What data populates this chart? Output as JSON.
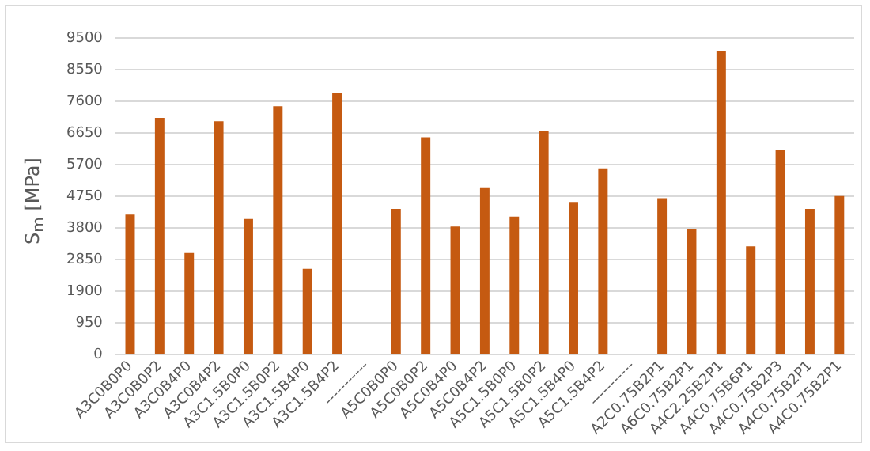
{
  "chart_data": {
    "type": "bar",
    "ylabel": "S$_{m}$ [MPa]",
    "categories": [
      "A3C0B0P0",
      "A3C0B0P2",
      "A3C0B4P0",
      "A3C0B4P2",
      "A3C1.5B0P0",
      "A3C1.5B0P2",
      "A3C1.5B4P0",
      "A3C1.5B4P2",
      "-----------",
      "A5C0B0P0",
      "A5C0B0P2",
      "A5C0B4P0",
      "A5C0B4P2",
      "A5C1.5B0P0",
      "A5C1.5B0P2",
      "A5C1.5B4P0",
      "A5C1.5B4P2",
      "-----------",
      "A2C0.75B2P1",
      "A6C0.75B2P1",
      "A4C2.25B2P1",
      "A4C0.75B6P1",
      "A4C0.75B2P3",
      "A4C0.75B2P1",
      "A4C0.75B2P1"
    ],
    "values": [
      4200,
      7100,
      3050,
      7000,
      4070,
      7450,
      2570,
      7850,
      null,
      4370,
      6520,
      3840,
      5020,
      4140,
      6700,
      4580,
      5590,
      null,
      4690,
      3770,
      9110,
      3250,
      6130,
      4370,
      4760
    ],
    "color": "#c55a11",
    "ylim": [
      0,
      9500
    ],
    "yticks": [
      0,
      950,
      1900,
      2850,
      3800,
      4750,
      5700,
      6650,
      7600,
      8550,
      9500
    ],
    "grid": "y",
    "legend": false
  }
}
